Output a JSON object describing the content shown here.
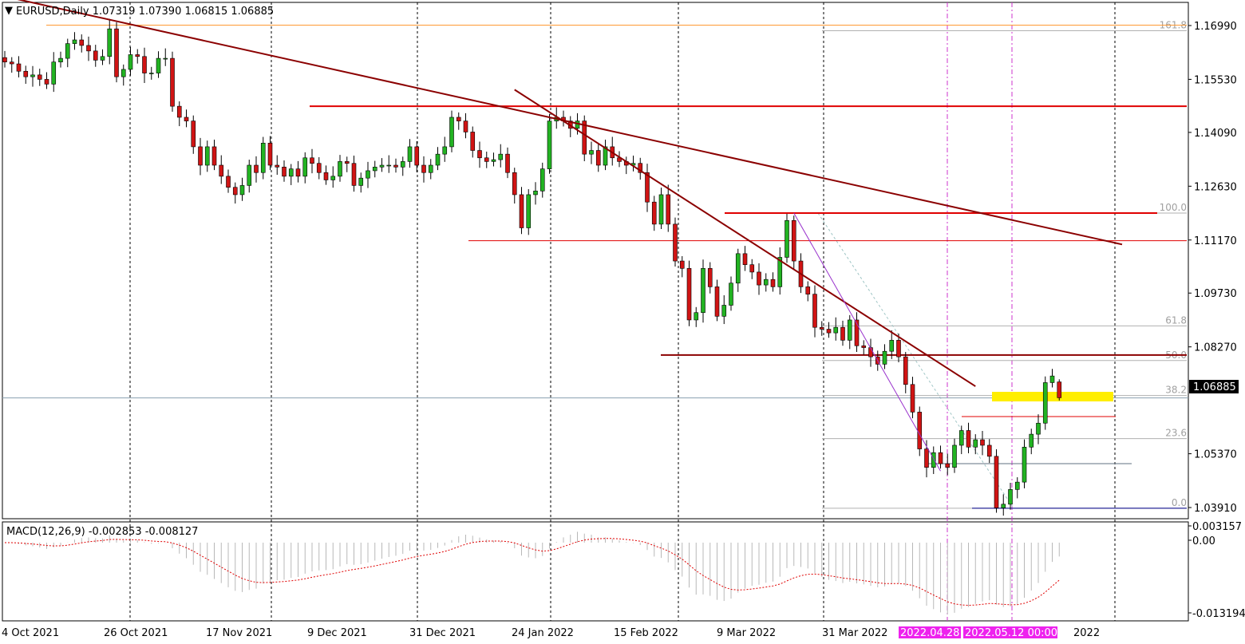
{
  "header": {
    "symbol_line": "EURUSD,Daily  1.07319 1.07390 1.06815 1.06885",
    "macd_line": "MACD(12,26,9) -0.002853 -0.008127"
  },
  "colors": {
    "bull": "#22b322",
    "bear": "#d01414",
    "trendline": "#8b0000",
    "hline": "#e00000",
    "fib": "#b0b0b0",
    "vline_special": "#cc33cc",
    "highlight": "#ffee00"
  },
  "price_axis": {
    "ticks": [
      "1.16990",
      "1.15530",
      "1.14090",
      "1.12630",
      "1.11170",
      "1.09730",
      "1.08270",
      "1.05370",
      "1.03910"
    ],
    "current_price": "1.06885"
  },
  "macd_axis": {
    "ticks": [
      "0.003157",
      "0.00",
      "-0.013194"
    ]
  },
  "time_axis": {
    "labels": [
      "4 Oct 2021",
      "26 Oct 2021",
      "17 Nov 2021",
      "9 Dec 2021",
      "31 Dec 2021",
      "24 Jan 2022",
      "15 Feb 2022",
      "9 Mar 2022",
      "31 Mar 2022",
      "2022"
    ],
    "highlight_labels": [
      "2022.04.28",
      "2022.05.12 00:00"
    ]
  },
  "fib_levels": [
    "161.8",
    "100.0",
    "61.8",
    "50.0",
    "38.2",
    "23.6",
    "0.0"
  ],
  "chart_data": {
    "type": "candlestick",
    "symbol": "EURUSD",
    "timeframe": "Daily",
    "last_ohlc": {
      "open": 1.07319,
      "high": 1.0739,
      "low": 1.06815,
      "close": 1.06885
    },
    "ylim": [
      1.033,
      1.177
    ],
    "closes": [
      1.16,
      1.1595,
      1.1575,
      1.156,
      1.1565,
      1.1553,
      1.154,
      1.16,
      1.161,
      1.165,
      1.166,
      1.1645,
      1.163,
      1.1605,
      1.1615,
      1.169,
      1.156,
      1.158,
      1.162,
      1.1615,
      1.157,
      1.157,
      1.161,
      1.161,
      1.148,
      1.145,
      1.144,
      1.137,
      1.132,
      1.137,
      1.132,
      1.129,
      1.126,
      1.124,
      1.1265,
      1.132,
      1.13,
      1.138,
      1.132,
      1.1315,
      1.129,
      1.131,
      1.129,
      1.134,
      1.1325,
      1.13,
      1.128,
      1.129,
      1.133,
      1.1325,
      1.1265,
      1.1285,
      1.1305,
      1.1315,
      1.132,
      1.132,
      1.1315,
      1.133,
      1.137,
      1.132,
      1.13,
      1.132,
      1.135,
      1.137,
      1.145,
      1.144,
      1.141,
      1.136,
      1.134,
      1.133,
      1.1335,
      1.135,
      1.13,
      1.124,
      1.115,
      1.124,
      1.125,
      1.131,
      1.144,
      1.145,
      1.144,
      1.142,
      1.144,
      1.135,
      1.136,
      1.132,
      1.137,
      1.134,
      1.133,
      1.132,
      1.1325,
      1.13,
      1.122,
      1.116,
      1.124,
      1.116,
      1.106,
      1.104,
      1.09,
      1.092,
      1.104,
      1.099,
      1.091,
      1.094,
      1.1,
      1.108,
      1.105,
      1.103,
      1.0995,
      1.101,
      1.099,
      1.107,
      1.117,
      1.106,
      1.099,
      1.097,
      1.088,
      1.0875,
      1.0865,
      1.088,
      1.0845,
      1.09,
      1.083,
      1.0825,
      1.08,
      1.078,
      1.0815,
      1.0845,
      1.08,
      1.0725,
      1.065,
      1.055,
      1.05,
      1.054,
      1.051,
      1.05,
      1.056,
      1.06,
      1.0555,
      1.0575,
      1.056,
      1.053,
      1.039,
      1.04,
      1.044,
      1.046,
      1.0555,
      1.059,
      1.062,
      1.073,
      1.0748,
      1.0689
    ],
    "trendlines": [
      {
        "from": {
          "index": -10,
          "price": 1.182
        },
        "to": {
          "index": 160,
          "price": 1.1105
        },
        "color": "#8b0000"
      },
      {
        "from": {
          "index": 73,
          "price": 1.1525
        },
        "to": {
          "index": 139,
          "price": 1.072
        },
        "color": "#8b0000"
      },
      {
        "from": {
          "index": 113,
          "price": 1.119
        },
        "to": {
          "index": 134,
          "price": 1.049
        },
        "color": "#9932cc"
      }
    ],
    "horizontal_levels": [
      {
        "price": 1.17,
        "color": "#ff9933"
      },
      {
        "price": 1.148,
        "color": "#e00000"
      },
      {
        "price": 1.119,
        "color": "#e00000"
      },
      {
        "price": 1.1115,
        "color": "#e00000"
      },
      {
        "price": 1.0805,
        "color": "#8b0000"
      },
      {
        "price": 1.0638,
        "color": "#e00000"
      },
      {
        "price": 1.0389,
        "color": "#00008b"
      }
    ],
    "fibonacci": {
      "high": 1.119,
      "low": 1.0389,
      "levels": [
        {
          "ratio": 161.8,
          "price": 1.1685
        },
        {
          "ratio": 100.0,
          "price": 1.119
        },
        {
          "ratio": 61.8,
          "price": 1.0884
        },
        {
          "ratio": 50.0,
          "price": 1.079
        },
        {
          "ratio": 38.2,
          "price": 1.0695
        },
        {
          "ratio": 23.6,
          "price": 1.0578
        },
        {
          "ratio": 0.0,
          "price": 1.0389
        }
      ]
    },
    "macd": {
      "params": [
        12,
        26,
        9
      ],
      "main": -0.002853,
      "signal": -0.008127,
      "ylim": [
        -0.014,
        0.004
      ]
    },
    "grid": true
  }
}
